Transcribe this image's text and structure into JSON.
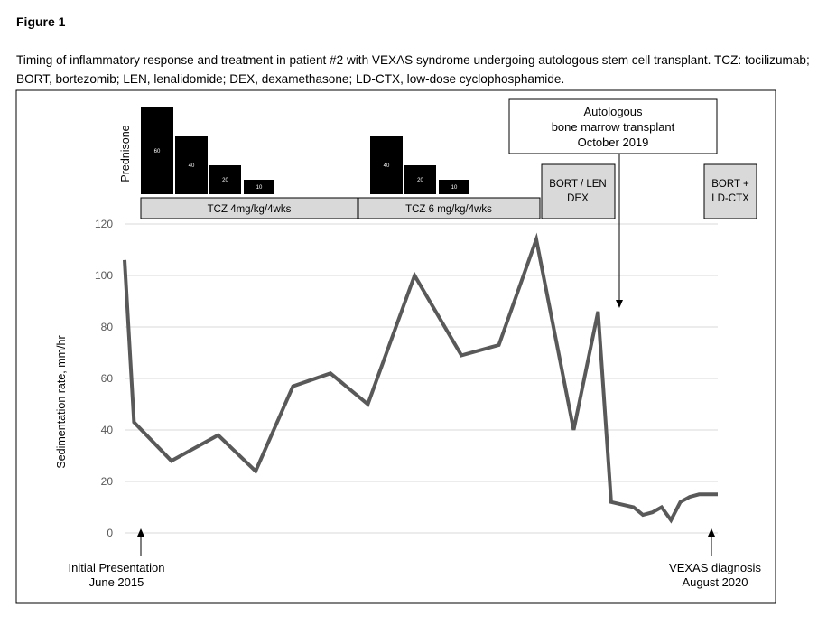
{
  "figure_label": "Figure 1",
  "caption": "Timing of inflammatory response and treatment in patient #2 with VEXAS syndrome undergoing autologous stem cell transplant. TCZ: tocilizumab; BORT, bortezomib; LEN, lenalidomide; DEX, dexamethasone; LD-CTX, low-dose cyclophosphamide.",
  "chart_data": {
    "type": "line",
    "ylabel": "Sedimentation rate, mm/hr",
    "ylim": [
      0,
      120
    ],
    "yticks": [
      0,
      20,
      40,
      60,
      80,
      100,
      120
    ],
    "grid": true,
    "series": [
      {
        "name": "Sedimentation rate",
        "color": "#595959",
        "x": [
          0,
          0.5,
          2.5,
          5,
          7,
          9,
          11,
          13,
          15.5,
          18,
          20,
          22,
          24,
          25.3,
          26,
          27.2,
          27.7,
          28.2,
          28.7,
          29.2,
          29.7,
          30.2,
          30.7,
          31.2,
          31.7
        ],
        "values": [
          106,
          43,
          28,
          38,
          24,
          57,
          62,
          50,
          100,
          69,
          73,
          114,
          40,
          86,
          12,
          10,
          7,
          8,
          10,
          5,
          12,
          14,
          15,
          15,
          15
        ]
      }
    ],
    "prednisone": {
      "label": "Prednisone",
      "bars": [
        60,
        40,
        20,
        10,
        40,
        20,
        10
      ]
    },
    "treatments": {
      "tcz_1": "TCZ 4mg/kg/4wks",
      "tcz_2": "TCZ 6 mg/kg/4wks",
      "bort_len": [
        "BORT / LEN",
        "DEX"
      ],
      "bort_ctx": [
        "BORT +",
        "LD-CTX"
      ]
    },
    "annotations": {
      "transplant": [
        "Autologous",
        "bone marrow transplant",
        "October 2019"
      ],
      "initial": [
        "Initial Presentation",
        "June 2015"
      ],
      "diagnosis": [
        "VEXAS diagnosis",
        "August 2020"
      ]
    }
  }
}
